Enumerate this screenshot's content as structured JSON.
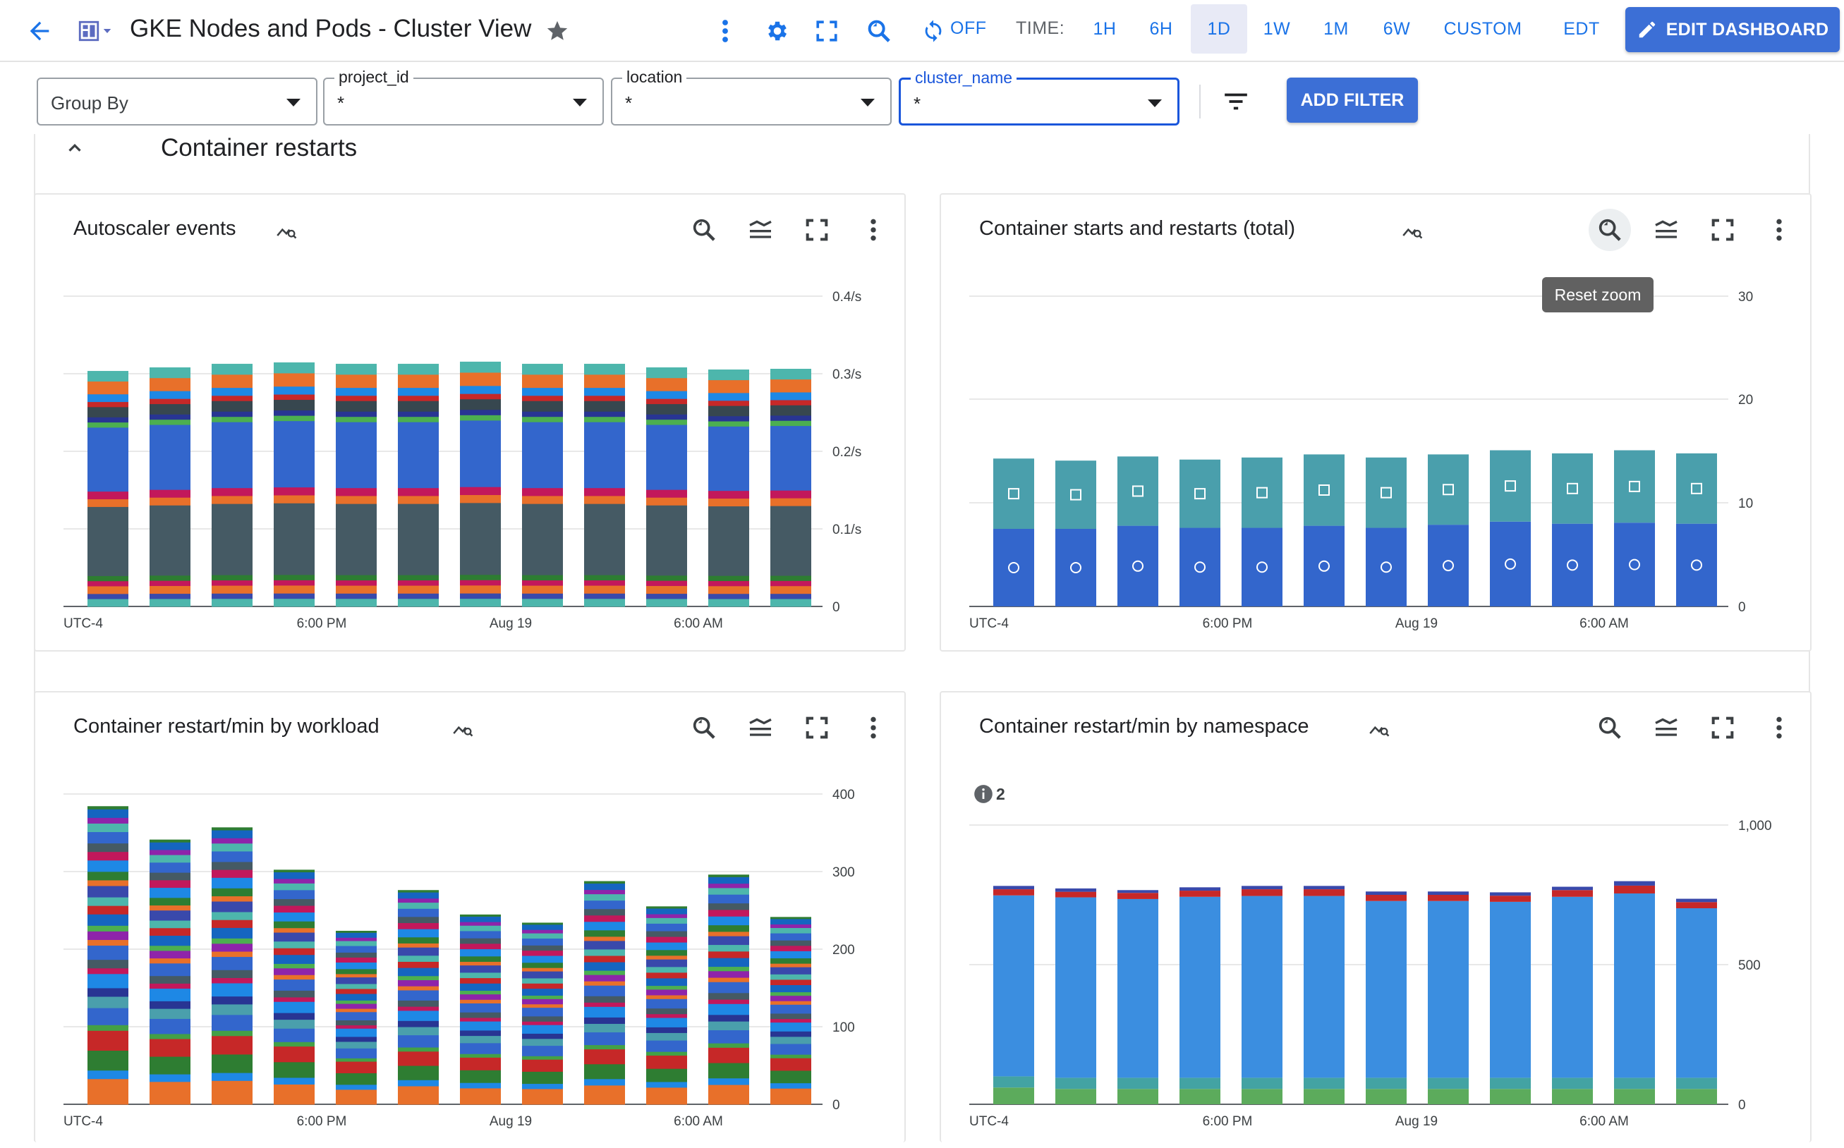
{
  "header": {
    "title": "GKE Nodes and Pods - Cluster View",
    "auto_refresh": "OFF",
    "time_label": "TIME:",
    "time_ranges": [
      "1H",
      "6H",
      "1D",
      "1W",
      "1M",
      "6W",
      "CUSTOM"
    ],
    "selected_range": "1D",
    "timezone": "EDT",
    "edit_button": "EDIT DASHBOARD",
    "icons": [
      "back-arrow-icon",
      "dashboard-icon",
      "star-icon",
      "more-vert-icon",
      "gear-icon",
      "fullscreen-icon",
      "zoom-icon",
      "refresh-icon",
      "edit-icon"
    ]
  },
  "filters": {
    "group_by": {
      "placeholder": "Group By"
    },
    "project_id": {
      "label": "project_id",
      "value": "*"
    },
    "location": {
      "label": "location",
      "value": "*"
    },
    "cluster_name": {
      "label": "cluster_name",
      "value": "*"
    },
    "add_filter": "ADD FILTER"
  },
  "section": {
    "title": "Container restarts"
  },
  "tooltip": {
    "text": "Reset zoom"
  },
  "colors": {
    "accent": "#1a73e8",
    "button": "#3c6fd6"
  },
  "chart_data": [
    {
      "type": "bar",
      "stacked": true,
      "title": "Autoscaler events",
      "x_ticks": [
        "UTC-4",
        "6:00 PM",
        "Aug 19",
        "6:00 AM"
      ],
      "y_ticks": [
        "0",
        "0.1/s",
        "0.2/s",
        "0.3/s",
        "0.4/s"
      ],
      "ylim": [
        0,
        0.4
      ],
      "bar_count": 12,
      "totals": [
        0.33,
        0.335,
        0.34,
        0.342,
        0.34,
        0.34,
        0.343,
        0.34,
        0.34,
        0.335,
        0.332,
        0.333
      ],
      "segments": [
        {
          "color": "#4db6ac",
          "fraction": 0.03
        },
        {
          "color": "#3949ab",
          "fraction": 0.02
        },
        {
          "color": "#e8702a",
          "fraction": 0.03
        },
        {
          "color": "#c2185b",
          "fraction": 0.02
        },
        {
          "color": "#2e7d32",
          "fraction": 0.02
        },
        {
          "color": "#455a64",
          "fraction": 0.27
        },
        {
          "color": "#e8702a",
          "fraction": 0.03
        },
        {
          "color": "#c2185b",
          "fraction": 0.03
        },
        {
          "color": "#3366cc",
          "fraction": 0.25
        },
        {
          "color": "#4caf50",
          "fraction": 0.02
        },
        {
          "color": "#283593",
          "fraction": 0.02
        },
        {
          "color": "#37474f",
          "fraction": 0.04
        },
        {
          "color": "#c62828",
          "fraction": 0.02
        },
        {
          "color": "#1e88e5",
          "fraction": 0.03
        },
        {
          "color": "#e8702a",
          "fraction": 0.05
        },
        {
          "color": "#4db6ac",
          "fraction": 0.04
        }
      ]
    },
    {
      "type": "bar",
      "stacked": true,
      "title": "Container starts and restarts (total)",
      "x_ticks": [
        "UTC-4",
        "6:00 PM",
        "Aug 19",
        "6:00 AM"
      ],
      "y_ticks": [
        "0",
        "10",
        "20",
        "30"
      ],
      "ylim": [
        0,
        30
      ],
      "series": [
        {
          "name": "",
          "color": "#3366cc",
          "marker": "circle",
          "values": [
            7.5,
            7.5,
            7.8,
            7.6,
            7.6,
            7.8,
            7.6,
            7.9,
            8.2,
            8.0,
            8.1,
            8.0
          ]
        },
        {
          "name": "",
          "color": "#4a9fac",
          "marker": "square",
          "values": [
            6.8,
            6.6,
            6.7,
            6.6,
            6.8,
            6.9,
            6.8,
            6.8,
            6.9,
            6.8,
            7.0,
            6.8
          ]
        }
      ]
    },
    {
      "type": "bar",
      "stacked": true,
      "title": "Container restart/min by workload",
      "x_ticks": [
        "UTC-4",
        "6:00 PM",
        "Aug 19",
        "6:00 AM"
      ],
      "y_ticks": [
        "0",
        "100",
        "200",
        "300",
        "400"
      ],
      "ylim": [
        0,
        400
      ],
      "bar_count": 12,
      "totals": [
        366,
        325,
        340,
        288,
        213,
        263,
        233,
        223,
        274,
        243,
        282,
        230
      ],
      "segments": [
        {
          "color": "#e8702a",
          "fraction": 0.09
        },
        {
          "color": "#1e88e5",
          "fraction": 0.03
        },
        {
          "color": "#2e7d32",
          "fraction": 0.07
        },
        {
          "color": "#c62828",
          "fraction": 0.07
        },
        {
          "color": "#43a047",
          "fraction": 0.02
        },
        {
          "color": "#3366cc",
          "fraction": 0.06
        },
        {
          "color": "#4a9fac",
          "fraction": 0.04
        },
        {
          "color": "#283593",
          "fraction": 0.03
        },
        {
          "color": "#1e88e5",
          "fraction": 0.05
        },
        {
          "color": "#c2185b",
          "fraction": 0.02
        },
        {
          "color": "#455a64",
          "fraction": 0.03
        },
        {
          "color": "#3366cc",
          "fraction": 0.05
        },
        {
          "color": "#e8702a",
          "fraction": 0.02
        },
        {
          "color": "#8e24aa",
          "fraction": 0.03
        },
        {
          "color": "#4caf50",
          "fraction": 0.02
        },
        {
          "color": "#1565c0",
          "fraction": 0.04
        },
        {
          "color": "#c62828",
          "fraction": 0.03
        },
        {
          "color": "#4db6ac",
          "fraction": 0.03
        },
        {
          "color": "#3949ab",
          "fraction": 0.04
        },
        {
          "color": "#e8702a",
          "fraction": 0.02
        },
        {
          "color": "#2e7d32",
          "fraction": 0.03
        },
        {
          "color": "#1e88e5",
          "fraction": 0.04
        },
        {
          "color": "#c2185b",
          "fraction": 0.03
        },
        {
          "color": "#455a64",
          "fraction": 0.03
        },
        {
          "color": "#3366cc",
          "fraction": 0.04
        },
        {
          "color": "#4db6ac",
          "fraction": 0.03
        },
        {
          "color": "#8e24aa",
          "fraction": 0.02
        },
        {
          "color": "#1565c0",
          "fraction": 0.03
        },
        {
          "color": "#2e7d32",
          "fraction": 0.01
        }
      ]
    },
    {
      "type": "bar",
      "stacked": true,
      "title": "Container restart/min by namespace",
      "x_ticks": [
        "UTC-4",
        "6:00 PM",
        "Aug 19",
        "6:00 AM"
      ],
      "y_ticks": [
        "0",
        "500",
        "1,000"
      ],
      "ylim": [
        0,
        1170
      ],
      "info_badge": "2",
      "series": [
        {
          "name": "",
          "color": "#5cab5c",
          "values": [
            60,
            55,
            55,
            55,
            55,
            55,
            55,
            55,
            55,
            55,
            55,
            55
          ]
        },
        {
          "name": "",
          "color": "#43a3a3",
          "values": [
            40,
            40,
            40,
            40,
            40,
            40,
            40,
            40,
            40,
            40,
            40,
            40
          ]
        },
        {
          "name": "",
          "color": "#3b8ee0",
          "values": [
            648,
            646,
            640,
            648,
            651,
            651,
            633,
            633,
            630,
            648,
            660,
            607
          ]
        },
        {
          "name": "",
          "color": "#c62828",
          "values": [
            22,
            20,
            22,
            22,
            24,
            24,
            22,
            22,
            22,
            24,
            28,
            22
          ]
        },
        {
          "name": "",
          "color": "#3949ab",
          "values": [
            12,
            12,
            10,
            12,
            12,
            12,
            12,
            12,
            12,
            12,
            16,
            12
          ]
        }
      ]
    }
  ]
}
